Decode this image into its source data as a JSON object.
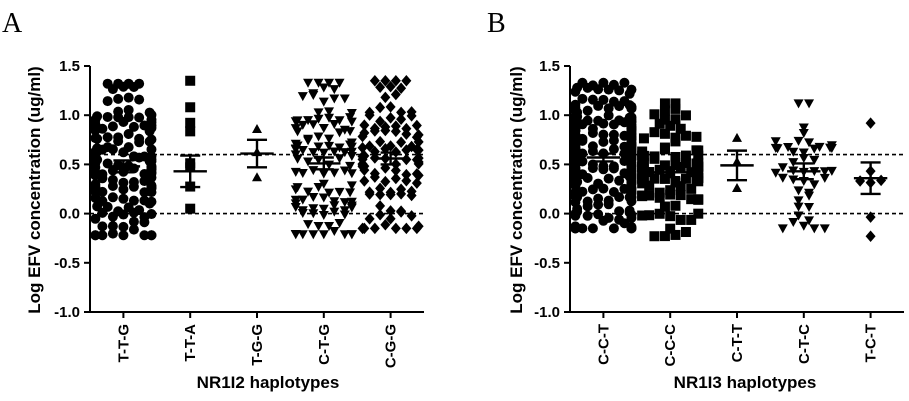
{
  "chart_data": [
    {
      "type": "scatter",
      "panel_label": "A",
      "ylabel": "Log EFV concentration (ug/ml)",
      "xlabel": "NR1I2 haplotypes",
      "ylim": [
        -1.0,
        1.5
      ],
      "y_ticks": [
        "1.5",
        "1.0",
        "0.5",
        "0.0",
        "-0.5",
        "-1.0"
      ],
      "reference_lines": [
        0.6,
        0.0
      ],
      "categories": [
        "T-T-G",
        "T-T-A",
        "T-G-G",
        "C-T-G",
        "C-G-G"
      ],
      "markers": [
        "circle",
        "square",
        "triangle-up",
        "triangle-down",
        "diamond"
      ],
      "groups": [
        {
          "n": 140,
          "min": -0.22,
          "max": 1.32,
          "mean": 0.48,
          "sem_low": 0.42,
          "sem_high": 0.54
        },
        {
          "n": 8,
          "min": 0.05,
          "max": 1.35,
          "mean": 0.43,
          "sem_low": 0.27,
          "sem_high": 0.59
        },
        {
          "n": 3,
          "min": 0.37,
          "max": 0.86,
          "mean": 0.61,
          "sem_low": 0.47,
          "sem_high": 0.75
        },
        {
          "n": 110,
          "min": -0.21,
          "max": 1.33,
          "mean": 0.51,
          "sem_low": 0.45,
          "sem_high": 0.57
        },
        {
          "n": 100,
          "min": -0.15,
          "max": 1.35,
          "mean": 0.56,
          "sem_low": 0.5,
          "sem_high": 0.62
        }
      ]
    },
    {
      "type": "scatter",
      "panel_label": "B",
      "ylabel": "Log EFV concentration (ug/ml)",
      "xlabel": "NR1I3 haplotypes",
      "ylim": [
        -1.0,
        1.5
      ],
      "y_ticks": [
        "1.5",
        "1.0",
        "0.5",
        "0.0",
        "-0.5",
        "-1.0"
      ],
      "reference_lines": [
        0.6,
        0.0
      ],
      "categories": [
        "C-C-T",
        "C-C-C",
        "C-T-T",
        "C-T-C",
        "T-C-T"
      ],
      "markers": [
        "circle",
        "square",
        "triangle-up",
        "triangle-down",
        "diamond"
      ],
      "groups": [
        {
          "n": 260,
          "min": -0.15,
          "max": 1.33,
          "mean": 0.57,
          "sem_low": 0.53,
          "sem_high": 0.61
        },
        {
          "n": 90,
          "min": -0.23,
          "max": 1.12,
          "mean": 0.42,
          "sem_low": 0.37,
          "sem_high": 0.47
        },
        {
          "n": 3,
          "min": 0.26,
          "max": 0.77,
          "mean": 0.49,
          "sem_low": 0.34,
          "sem_high": 0.64
        },
        {
          "n": 45,
          "min": -0.15,
          "max": 1.12,
          "mean": 0.43,
          "sem_low": 0.35,
          "sem_high": 0.51
        },
        {
          "n": 7,
          "min": -0.23,
          "max": 0.92,
          "mean": 0.36,
          "sem_low": 0.2,
          "sem_high": 0.52
        }
      ]
    }
  ]
}
